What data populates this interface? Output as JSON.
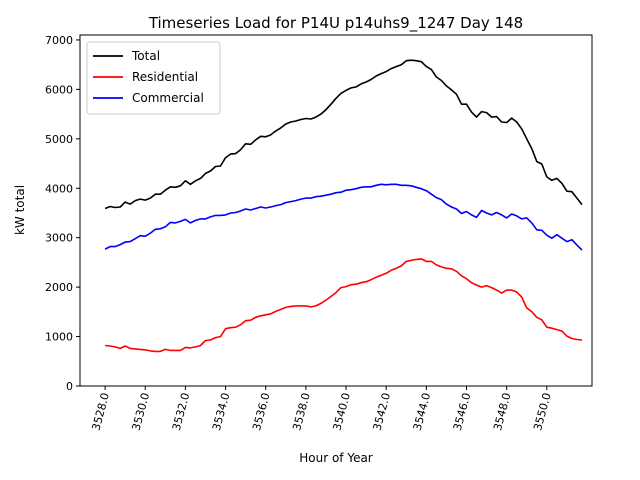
{
  "chart_data": {
    "type": "line",
    "title": "Timeseries Load for P14U p14uhs9_1247  Day 148",
    "xlabel": "Hour of Year",
    "ylabel": "kW total",
    "xlim": [
      3526.75,
      3552.25
    ],
    "ylim": [
      0,
      7100
    ],
    "xticks": [
      3528,
      3530,
      3532,
      3534,
      3536,
      3538,
      3540,
      3542,
      3544,
      3546,
      3548,
      3550
    ],
    "xtick_labels": [
      "3528.0",
      "3530.0",
      "3532.0",
      "3534.0",
      "3536.0",
      "3538.0",
      "3540.0",
      "3542.0",
      "3544.0",
      "3546.0",
      "3548.0",
      "3550.0"
    ],
    "yticks": [
      0,
      1000,
      2000,
      3000,
      4000,
      5000,
      6000,
      7000
    ],
    "ytick_labels": [
      "0",
      "1000",
      "2000",
      "3000",
      "4000",
      "5000",
      "6000",
      "7000"
    ],
    "grid": false,
    "legend_position": "top-left",
    "series": [
      {
        "name": "Total",
        "color": "#000000",
        "points": [
          [
            3528.0,
            3590
          ],
          [
            3528.25,
            3630
          ],
          [
            3528.5,
            3610
          ],
          [
            3528.75,
            3620
          ],
          [
            3529.0,
            3720
          ],
          [
            3529.25,
            3680
          ],
          [
            3529.5,
            3750
          ],
          [
            3529.75,
            3780
          ],
          [
            3530.0,
            3760
          ],
          [
            3530.25,
            3800
          ],
          [
            3530.5,
            3880
          ],
          [
            3530.75,
            3880
          ],
          [
            3531.0,
            3960
          ],
          [
            3531.25,
            4030
          ],
          [
            3531.5,
            4020
          ],
          [
            3531.75,
            4050
          ],
          [
            3532.0,
            4150
          ],
          [
            3532.25,
            4080
          ],
          [
            3532.5,
            4150
          ],
          [
            3532.75,
            4200
          ],
          [
            3533.0,
            4300
          ],
          [
            3533.25,
            4350
          ],
          [
            3533.5,
            4440
          ],
          [
            3533.75,
            4450
          ],
          [
            3534.0,
            4620
          ],
          [
            3534.25,
            4690
          ],
          [
            3534.5,
            4700
          ],
          [
            3534.75,
            4780
          ],
          [
            3535.0,
            4900
          ],
          [
            3535.25,
            4890
          ],
          [
            3535.5,
            4980
          ],
          [
            3535.75,
            5050
          ],
          [
            3536.0,
            5040
          ],
          [
            3536.25,
            5080
          ],
          [
            3536.5,
            5160
          ],
          [
            3536.75,
            5220
          ],
          [
            3537.0,
            5300
          ],
          [
            3537.25,
            5340
          ],
          [
            3537.5,
            5360
          ],
          [
            3537.75,
            5390
          ],
          [
            3538.0,
            5410
          ],
          [
            3538.25,
            5400
          ],
          [
            3538.5,
            5440
          ],
          [
            3538.75,
            5500
          ],
          [
            3539.0,
            5590
          ],
          [
            3539.25,
            5700
          ],
          [
            3539.5,
            5820
          ],
          [
            3539.75,
            5920
          ],
          [
            3540.0,
            5980
          ],
          [
            3540.25,
            6030
          ],
          [
            3540.5,
            6050
          ],
          [
            3540.75,
            6110
          ],
          [
            3541.0,
            6150
          ],
          [
            3541.25,
            6200
          ],
          [
            3541.5,
            6270
          ],
          [
            3541.75,
            6320
          ],
          [
            3542.0,
            6360
          ],
          [
            3542.25,
            6420
          ],
          [
            3542.5,
            6460
          ],
          [
            3542.75,
            6500
          ],
          [
            3543.0,
            6580
          ],
          [
            3543.25,
            6590
          ],
          [
            3543.5,
            6580
          ],
          [
            3543.75,
            6560
          ],
          [
            3544.0,
            6460
          ],
          [
            3544.25,
            6400
          ],
          [
            3544.5,
            6250
          ],
          [
            3544.75,
            6180
          ],
          [
            3545.0,
            6070
          ],
          [
            3545.25,
            5990
          ],
          [
            3545.5,
            5900
          ],
          [
            3545.75,
            5700
          ],
          [
            3546.0,
            5700
          ],
          [
            3546.25,
            5540
          ],
          [
            3546.5,
            5440
          ],
          [
            3546.75,
            5550
          ],
          [
            3547.0,
            5530
          ],
          [
            3547.25,
            5440
          ],
          [
            3547.5,
            5450
          ],
          [
            3547.75,
            5340
          ],
          [
            3548.0,
            5330
          ],
          [
            3548.25,
            5420
          ],
          [
            3548.5,
            5340
          ],
          [
            3548.75,
            5200
          ],
          [
            3549.0,
            5000
          ],
          [
            3549.25,
            4800
          ],
          [
            3549.5,
            4540
          ],
          [
            3549.75,
            4490
          ],
          [
            3550.0,
            4230
          ],
          [
            3550.25,
            4160
          ],
          [
            3550.5,
            4200
          ],
          [
            3550.75,
            4100
          ],
          [
            3551.0,
            3940
          ],
          [
            3551.25,
            3930
          ],
          [
            3551.5,
            3800
          ],
          [
            3551.75,
            3670
          ]
        ]
      },
      {
        "name": "Residential",
        "color": "#ff0000",
        "points": [
          [
            3528.0,
            820
          ],
          [
            3528.25,
            810
          ],
          [
            3528.5,
            790
          ],
          [
            3528.75,
            760
          ],
          [
            3529.0,
            810
          ],
          [
            3529.25,
            760
          ],
          [
            3529.5,
            750
          ],
          [
            3529.75,
            740
          ],
          [
            3530.0,
            730
          ],
          [
            3530.25,
            710
          ],
          [
            3530.5,
            700
          ],
          [
            3530.75,
            700
          ],
          [
            3531.0,
            740
          ],
          [
            3531.25,
            720
          ],
          [
            3531.5,
            720
          ],
          [
            3531.75,
            720
          ],
          [
            3532.0,
            780
          ],
          [
            3532.25,
            770
          ],
          [
            3532.5,
            790
          ],
          [
            3532.75,
            820
          ],
          [
            3533.0,
            920
          ],
          [
            3533.25,
            930
          ],
          [
            3533.5,
            980
          ],
          [
            3533.75,
            1000
          ],
          [
            3534.0,
            1160
          ],
          [
            3534.25,
            1180
          ],
          [
            3534.5,
            1190
          ],
          [
            3534.75,
            1240
          ],
          [
            3535.0,
            1320
          ],
          [
            3535.25,
            1330
          ],
          [
            3535.5,
            1390
          ],
          [
            3535.75,
            1420
          ],
          [
            3536.0,
            1440
          ],
          [
            3536.25,
            1460
          ],
          [
            3536.5,
            1510
          ],
          [
            3536.75,
            1550
          ],
          [
            3537.0,
            1590
          ],
          [
            3537.25,
            1610
          ],
          [
            3537.5,
            1620
          ],
          [
            3537.75,
            1620
          ],
          [
            3538.0,
            1620
          ],
          [
            3538.25,
            1600
          ],
          [
            3538.5,
            1620
          ],
          [
            3538.75,
            1670
          ],
          [
            3539.0,
            1740
          ],
          [
            3539.25,
            1810
          ],
          [
            3539.5,
            1890
          ],
          [
            3539.75,
            1990
          ],
          [
            3540.0,
            2010
          ],
          [
            3540.25,
            2050
          ],
          [
            3540.5,
            2060
          ],
          [
            3540.75,
            2090
          ],
          [
            3541.0,
            2110
          ],
          [
            3541.25,
            2150
          ],
          [
            3541.5,
            2200
          ],
          [
            3541.75,
            2240
          ],
          [
            3542.0,
            2280
          ],
          [
            3542.25,
            2340
          ],
          [
            3542.5,
            2380
          ],
          [
            3542.75,
            2430
          ],
          [
            3543.0,
            2520
          ],
          [
            3543.25,
            2540
          ],
          [
            3543.5,
            2560
          ],
          [
            3543.75,
            2570
          ],
          [
            3544.0,
            2520
          ],
          [
            3544.25,
            2520
          ],
          [
            3544.5,
            2450
          ],
          [
            3544.75,
            2410
          ],
          [
            3545.0,
            2380
          ],
          [
            3545.25,
            2370
          ],
          [
            3545.5,
            2320
          ],
          [
            3545.75,
            2230
          ],
          [
            3546.0,
            2170
          ],
          [
            3546.25,
            2090
          ],
          [
            3546.5,
            2040
          ],
          [
            3546.75,
            2000
          ],
          [
            3547.0,
            2030
          ],
          [
            3547.25,
            1990
          ],
          [
            3547.5,
            1940
          ],
          [
            3547.75,
            1880
          ],
          [
            3548.0,
            1940
          ],
          [
            3548.25,
            1940
          ],
          [
            3548.5,
            1900
          ],
          [
            3548.75,
            1800
          ],
          [
            3549.0,
            1580
          ],
          [
            3549.25,
            1500
          ],
          [
            3549.5,
            1390
          ],
          [
            3549.75,
            1340
          ],
          [
            3550.0,
            1190
          ],
          [
            3550.25,
            1170
          ],
          [
            3550.5,
            1140
          ],
          [
            3550.75,
            1110
          ],
          [
            3551.0,
            1010
          ],
          [
            3551.25,
            960
          ],
          [
            3551.5,
            940
          ],
          [
            3551.75,
            930
          ]
        ]
      },
      {
        "name": "Commercial",
        "color": "#0000ff",
        "points": [
          [
            3528.0,
            2770
          ],
          [
            3528.25,
            2820
          ],
          [
            3528.5,
            2820
          ],
          [
            3528.75,
            2860
          ],
          [
            3529.0,
            2910
          ],
          [
            3529.25,
            2920
          ],
          [
            3529.5,
            2980
          ],
          [
            3529.75,
            3040
          ],
          [
            3530.0,
            3030
          ],
          [
            3530.25,
            3090
          ],
          [
            3530.5,
            3170
          ],
          [
            3530.75,
            3180
          ],
          [
            3531.0,
            3220
          ],
          [
            3531.25,
            3310
          ],
          [
            3531.5,
            3300
          ],
          [
            3531.75,
            3330
          ],
          [
            3532.0,
            3370
          ],
          [
            3532.25,
            3300
          ],
          [
            3532.5,
            3350
          ],
          [
            3532.75,
            3380
          ],
          [
            3533.0,
            3380
          ],
          [
            3533.25,
            3420
          ],
          [
            3533.5,
            3450
          ],
          [
            3533.75,
            3450
          ],
          [
            3534.0,
            3460
          ],
          [
            3534.25,
            3500
          ],
          [
            3534.5,
            3510
          ],
          [
            3534.75,
            3540
          ],
          [
            3535.0,
            3580
          ],
          [
            3535.25,
            3560
          ],
          [
            3535.5,
            3590
          ],
          [
            3535.75,
            3620
          ],
          [
            3536.0,
            3600
          ],
          [
            3536.25,
            3620
          ],
          [
            3536.5,
            3650
          ],
          [
            3536.75,
            3670
          ],
          [
            3537.0,
            3710
          ],
          [
            3537.25,
            3730
          ],
          [
            3537.5,
            3750
          ],
          [
            3537.75,
            3780
          ],
          [
            3538.0,
            3800
          ],
          [
            3538.25,
            3800
          ],
          [
            3538.5,
            3830
          ],
          [
            3538.75,
            3840
          ],
          [
            3539.0,
            3860
          ],
          [
            3539.25,
            3880
          ],
          [
            3539.5,
            3910
          ],
          [
            3539.75,
            3920
          ],
          [
            3540.0,
            3960
          ],
          [
            3540.25,
            3970
          ],
          [
            3540.5,
            3990
          ],
          [
            3540.75,
            4020
          ],
          [
            3541.0,
            4030
          ],
          [
            3541.25,
            4030
          ],
          [
            3541.5,
            4060
          ],
          [
            3541.75,
            4080
          ],
          [
            3542.0,
            4070
          ],
          [
            3542.25,
            4080
          ],
          [
            3542.5,
            4080
          ],
          [
            3542.75,
            4060
          ],
          [
            3543.0,
            4060
          ],
          [
            3543.25,
            4050
          ],
          [
            3543.5,
            4020
          ],
          [
            3543.75,
            3990
          ],
          [
            3544.0,
            3950
          ],
          [
            3544.25,
            3880
          ],
          [
            3544.5,
            3810
          ],
          [
            3544.75,
            3770
          ],
          [
            3545.0,
            3680
          ],
          [
            3545.25,
            3620
          ],
          [
            3545.5,
            3580
          ],
          [
            3545.75,
            3490
          ],
          [
            3546.0,
            3530
          ],
          [
            3546.25,
            3460
          ],
          [
            3546.5,
            3410
          ],
          [
            3546.75,
            3550
          ],
          [
            3547.0,
            3500
          ],
          [
            3547.25,
            3460
          ],
          [
            3547.5,
            3510
          ],
          [
            3547.75,
            3460
          ],
          [
            3548.0,
            3400
          ],
          [
            3548.25,
            3480
          ],
          [
            3548.5,
            3440
          ],
          [
            3548.75,
            3380
          ],
          [
            3549.0,
            3400
          ],
          [
            3549.25,
            3300
          ],
          [
            3549.5,
            3160
          ],
          [
            3549.75,
            3150
          ],
          [
            3550.0,
            3050
          ],
          [
            3550.25,
            2990
          ],
          [
            3550.5,
            3060
          ],
          [
            3550.75,
            2990
          ],
          [
            3551.0,
            2920
          ],
          [
            3551.25,
            2960
          ],
          [
            3551.5,
            2850
          ],
          [
            3551.75,
            2750
          ]
        ]
      }
    ]
  }
}
